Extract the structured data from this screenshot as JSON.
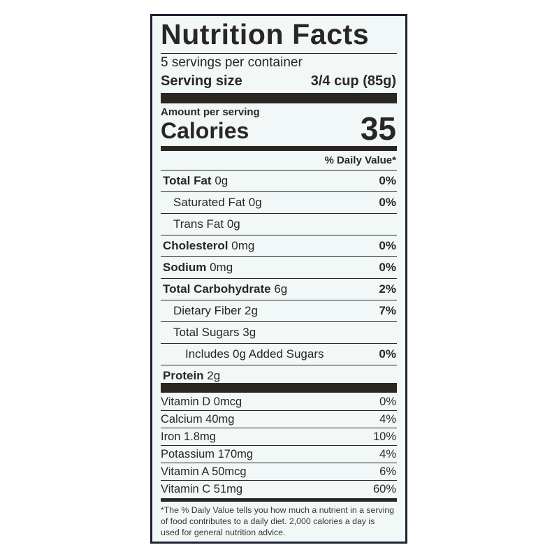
{
  "title": "Nutrition Facts",
  "servings": "5 servings per container",
  "serving_size": {
    "label": "Serving size",
    "value": "3/4 cup (85g)"
  },
  "amount_per_serving": "Amount per serving",
  "calories": {
    "label": "Calories",
    "value": "35"
  },
  "daily_value_header": "% Daily Value*",
  "nutrients": [
    {
      "name": "Total Fat",
      "amount": "0g",
      "dv": "0%",
      "sub": [
        {
          "name": "Saturated Fat",
          "amount": "0g",
          "dv": "0%"
        },
        {
          "name": "Trans Fat",
          "amount": "0g"
        }
      ]
    },
    {
      "name": "Cholesterol",
      "amount": "0mg",
      "dv": "0%"
    },
    {
      "name": "Sodium",
      "amount": "0mg",
      "dv": "0%"
    },
    {
      "name": "Total Carbohydrate",
      "amount": "6g",
      "dv": "2%",
      "sub": [
        {
          "name": "Dietary Fiber",
          "amount": "2g",
          "dv": "7%"
        },
        {
          "name": "Total Sugars",
          "amount": "3g",
          "sub": [
            {
              "name": "Includes 0g Added Sugars",
              "dv": "0%"
            }
          ]
        }
      ]
    },
    {
      "name": "Protein",
      "amount": "2g"
    }
  ],
  "vitamins": [
    {
      "name": "Vitamin D 0mcg",
      "dv": "0%"
    },
    {
      "name": "Calcium 40mg",
      "dv": "4%"
    },
    {
      "name": "Iron 1.8mg",
      "dv": "10%"
    },
    {
      "name": "Potassium 170mg",
      "dv": "4%"
    },
    {
      "name": "Vitamin A 50mcg",
      "dv": "6%"
    },
    {
      "name": "Vitamin C 51mg",
      "dv": "60%"
    }
  ],
  "footnote": "*The % Daily Value tells you how much a nutrient in a serving of food contributes to a daily diet. 2,000 calories a day is used for general nutrition advice."
}
